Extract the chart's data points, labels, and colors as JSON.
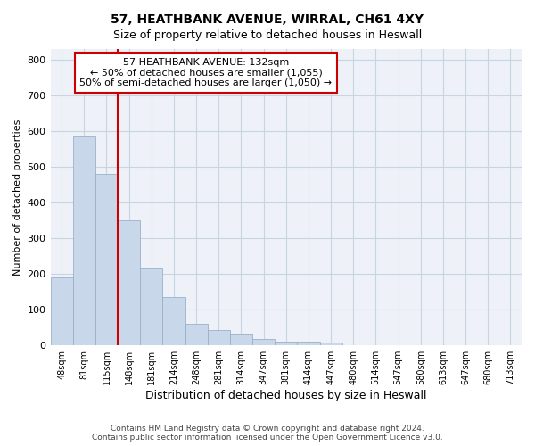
{
  "title_line1": "57, HEATHBANK AVENUE, WIRRAL, CH61 4XY",
  "title_line2": "Size of property relative to detached houses in Heswall",
  "xlabel": "Distribution of detached houses by size in Heswall",
  "ylabel": "Number of detached properties",
  "footer_line1": "Contains HM Land Registry data © Crown copyright and database right 2024.",
  "footer_line2": "Contains public sector information licensed under the Open Government Licence v3.0.",
  "categories": [
    "48sqm",
    "81sqm",
    "115sqm",
    "148sqm",
    "181sqm",
    "214sqm",
    "248sqm",
    "281sqm",
    "314sqm",
    "347sqm",
    "381sqm",
    "414sqm",
    "447sqm",
    "480sqm",
    "514sqm",
    "547sqm",
    "580sqm",
    "613sqm",
    "647sqm",
    "680sqm",
    "713sqm"
  ],
  "bar_values": [
    190,
    585,
    480,
    350,
    215,
    135,
    60,
    42,
    32,
    18,
    10,
    10,
    8,
    0,
    0,
    0,
    0,
    0,
    0,
    0,
    0
  ],
  "bar_color": "#c8d8ea",
  "bar_edgecolor": "#9ab0c8",
  "red_line_index": 3,
  "annotation_text": "57 HEATHBANK AVENUE: 132sqm\n← 50% of detached houses are smaller (1,055)\n50% of semi-detached houses are larger (1,050) →",
  "annotation_box_color": "#ffffff",
  "annotation_box_edgecolor": "#cc0000",
  "red_line_color": "#cc0000",
  "ylim": [
    0,
    830
  ],
  "yticks": [
    0,
    100,
    200,
    300,
    400,
    500,
    600,
    700,
    800
  ],
  "grid_color": "#c8d4e0",
  "background_color": "#eef2f8"
}
